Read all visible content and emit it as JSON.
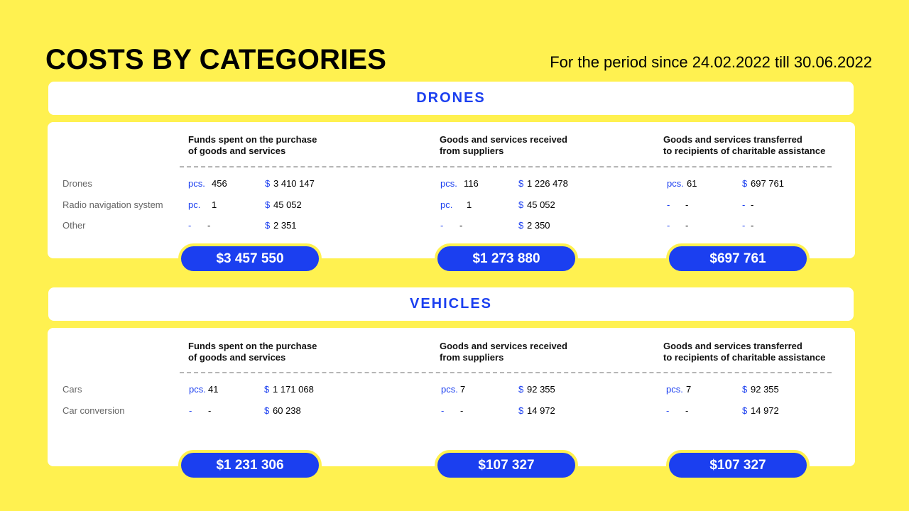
{
  "title": "COSTS BY CATEGORIES",
  "period": "For the period since 24.02.2022 till 30.06.2022",
  "columns": {
    "c1": [
      "Funds spent on the purchase",
      "of goods and services"
    ],
    "c2": [
      "Goods and services received",
      "from suppliers"
    ],
    "c3": [
      "Goods and services transferred",
      "to recipients of charitable assistance"
    ]
  },
  "drones": {
    "heading": "DRONES",
    "rows": [
      {
        "label": "Drones",
        "c1": {
          "unit": "pcs.",
          "qty": "456",
          "cur": "$",
          "amt": "3 410 147"
        },
        "c2": {
          "unit": "pcs.",
          "qty": "116",
          "cur": "$",
          "amt": "1 226 478"
        },
        "c3": {
          "unit": "pcs.",
          "qty": "61",
          "cur": "$",
          "amt": "697 761"
        }
      },
      {
        "label": "Radio navigation system",
        "c1": {
          "unit": "pc.",
          "qty": "1",
          "cur": "$",
          "amt": "45 052"
        },
        "c2": {
          "unit": "pc.",
          "qty": "1",
          "cur": "$",
          "amt": "45 052"
        },
        "c3": {
          "unit": "-",
          "qty": "-",
          "cur": "-",
          "amt": "-"
        }
      },
      {
        "label": "Other",
        "c1": {
          "unit": "-",
          "qty": "-",
          "cur": "$",
          "amt": "2 351"
        },
        "c2": {
          "unit": "-",
          "qty": "-",
          "cur": "$",
          "amt": "2 350"
        },
        "c3": {
          "unit": "-",
          "qty": "-",
          "cur": "-",
          "amt": "-"
        }
      }
    ],
    "totals": [
      "$3 457 550",
      "$1 273 880",
      "$697 761"
    ]
  },
  "vehicles": {
    "heading": "VEHICLES",
    "rows": [
      {
        "label": "Cars",
        "c1": {
          "unit": "pcs.",
          "qty": "41",
          "cur": "$",
          "amt": "1 171 068"
        },
        "c2": {
          "unit": "pcs.",
          "qty": "7",
          "cur": "$",
          "amt": "92 355"
        },
        "c3": {
          "unit": "pcs.",
          "qty": "7",
          "cur": "$",
          "amt": "92 355"
        }
      },
      {
        "label": "Car conversion",
        "c1": {
          "unit": "-",
          "qty": "-",
          "cur": "$",
          "amt": "60 238"
        },
        "c2": {
          "unit": "-",
          "qty": "-",
          "cur": "$",
          "amt": "14 972"
        },
        "c3": {
          "unit": "-",
          "qty": "-",
          "cur": "$",
          "amt": "14 972"
        }
      }
    ],
    "totals": [
      "$1 231 306",
      "$107 327",
      "$107 327"
    ]
  }
}
